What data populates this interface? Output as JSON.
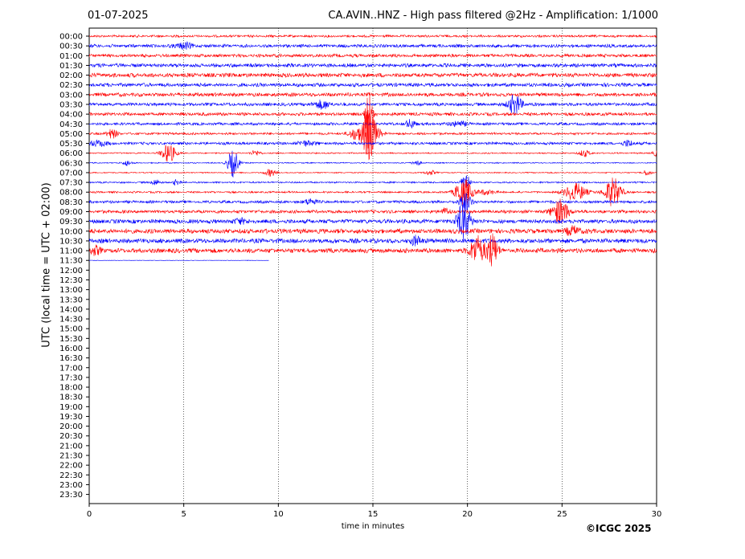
{
  "header": {
    "date": "01-07-2025",
    "title": "CA.AVIN..HNZ - High pass filtered @2Hz - Amplification: 1/1000"
  },
  "footer": {
    "copyright": "©ICGC 2025"
  },
  "chart_data": {
    "type": "line",
    "subtype": "helicorder",
    "xlabel": "time in minutes",
    "ylabel": "UTC (local time = UTC + 02:00)",
    "xlim": [
      0,
      30
    ],
    "x_ticks": [
      0,
      5,
      10,
      15,
      20,
      25,
      30
    ],
    "row_labels": [
      "00:00",
      "00:30",
      "01:00",
      "01:30",
      "02:00",
      "02:30",
      "03:00",
      "03:30",
      "04:00",
      "04:30",
      "05:00",
      "05:30",
      "06:00",
      "06:30",
      "07:00",
      "07:30",
      "08:00",
      "08:30",
      "09:00",
      "09:30",
      "10:00",
      "10:30",
      "11:00",
      "11:30",
      "12:00",
      "12:30",
      "13:00",
      "13:30",
      "14:00",
      "14:30",
      "15:00",
      "15:30",
      "16:00",
      "16:30",
      "17:00",
      "17:30",
      "18:00",
      "18:30",
      "19:00",
      "19:30",
      "20:00",
      "20:30",
      "21:00",
      "21:30",
      "22:00",
      "22:30",
      "23:00",
      "23:30"
    ],
    "row_colors": [
      "#ff0000",
      "#0000ff"
    ],
    "vertical_grid": "dotted at x ticks",
    "rows": [
      {
        "label": "00:00",
        "end": 30,
        "amp": 0.25,
        "events": []
      },
      {
        "label": "00:30",
        "end": 30,
        "amp": 0.35,
        "events": [
          [
            5,
            0.6,
            0.3
          ]
        ]
      },
      {
        "label": "01:00",
        "end": 30,
        "amp": 0.35,
        "events": []
      },
      {
        "label": "01:30",
        "end": 30,
        "amp": 0.4,
        "events": []
      },
      {
        "label": "02:00",
        "end": 30,
        "amp": 0.45,
        "events": []
      },
      {
        "label": "02:30",
        "end": 30,
        "amp": 0.4,
        "events": []
      },
      {
        "label": "03:00",
        "end": 30,
        "amp": 0.4,
        "events": []
      },
      {
        "label": "03:30",
        "end": 30,
        "amp": 0.35,
        "events": [
          [
            12.3,
            0.8,
            0.3
          ],
          [
            22.5,
            2.0,
            0.25
          ]
        ]
      },
      {
        "label": "04:00",
        "end": 30,
        "amp": 0.35,
        "events": [
          [
            14.8,
            10.0,
            0.12
          ]
        ]
      },
      {
        "label": "04:30",
        "end": 30,
        "amp": 0.3,
        "events": [
          [
            17,
            0.8,
            0.2
          ],
          [
            19.5,
            0.5,
            0.3
          ]
        ]
      },
      {
        "label": "05:00",
        "end": 30,
        "amp": 0.25,
        "events": [
          [
            1.2,
            0.9,
            0.2
          ],
          [
            14.0,
            1.0,
            0.2
          ],
          [
            14.8,
            5.0,
            0.3
          ]
        ]
      },
      {
        "label": "05:30",
        "end": 30,
        "amp": 0.3,
        "events": [
          [
            0.5,
            0.6,
            0.3
          ],
          [
            11.5,
            0.5,
            0.3
          ],
          [
            28.5,
            0.6,
            0.2
          ]
        ]
      },
      {
        "label": "06:00",
        "end": 30,
        "amp": 0.15,
        "events": [
          [
            4.2,
            2.0,
            0.25
          ],
          [
            8.8,
            0.5,
            0.2
          ],
          [
            26.2,
            0.7,
            0.2
          ],
          [
            30,
            0.5,
            0.2
          ]
        ]
      },
      {
        "label": "06:30",
        "end": 30,
        "amp": 0.12,
        "events": [
          [
            2,
            0.6,
            0.15
          ],
          [
            7.6,
            2.8,
            0.2
          ],
          [
            17.3,
            0.6,
            0.15
          ]
        ]
      },
      {
        "label": "07:00",
        "end": 30,
        "amp": 0.12,
        "events": [
          [
            9.6,
            0.8,
            0.2
          ],
          [
            18,
            0.5,
            0.2
          ],
          [
            29.5,
            0.6,
            0.15
          ]
        ]
      },
      {
        "label": "07:30",
        "end": 30,
        "amp": 0.18,
        "events": [
          [
            3.5,
            0.6,
            0.15
          ],
          [
            4.6,
            0.5,
            0.15
          ],
          [
            19.9,
            2.0,
            0.15
          ]
        ]
      },
      {
        "label": "08:00",
        "end": 30,
        "amp": 0.2,
        "events": [
          [
            19.8,
            3.0,
            0.3
          ],
          [
            21,
            0.5,
            0.3
          ],
          [
            25.7,
            1.8,
            0.4
          ],
          [
            27.7,
            3.0,
            0.3
          ]
        ]
      },
      {
        "label": "08:30",
        "end": 30,
        "amp": 0.3,
        "events": [
          [
            11.7,
            0.7,
            0.2
          ],
          [
            19.9,
            2.0,
            0.2
          ]
        ]
      },
      {
        "label": "09:00",
        "end": 30,
        "amp": 0.35,
        "events": [
          [
            18.8,
            0.6,
            0.2
          ],
          [
            24.9,
            2.5,
            0.3
          ]
        ]
      },
      {
        "label": "09:30",
        "end": 30,
        "amp": 0.45,
        "events": [
          [
            8,
            0.6,
            0.2
          ],
          [
            19.8,
            3.8,
            0.25
          ]
        ]
      },
      {
        "label": "10:00",
        "end": 30,
        "amp": 0.5,
        "events": [
          [
            25.6,
            0.8,
            0.3
          ]
        ]
      },
      {
        "label": "10:30",
        "end": 30,
        "amp": 0.5,
        "events": [
          [
            17.3,
            0.9,
            0.2
          ]
        ]
      },
      {
        "label": "11:00",
        "end": 30,
        "amp": 0.5,
        "events": [
          [
            0.3,
            0.8,
            0.2
          ],
          [
            20.5,
            3.0,
            0.25
          ],
          [
            21.3,
            3.5,
            0.2
          ]
        ]
      },
      {
        "label": "11:30",
        "end": 9.5,
        "amp": 0.05,
        "events": []
      }
    ]
  }
}
